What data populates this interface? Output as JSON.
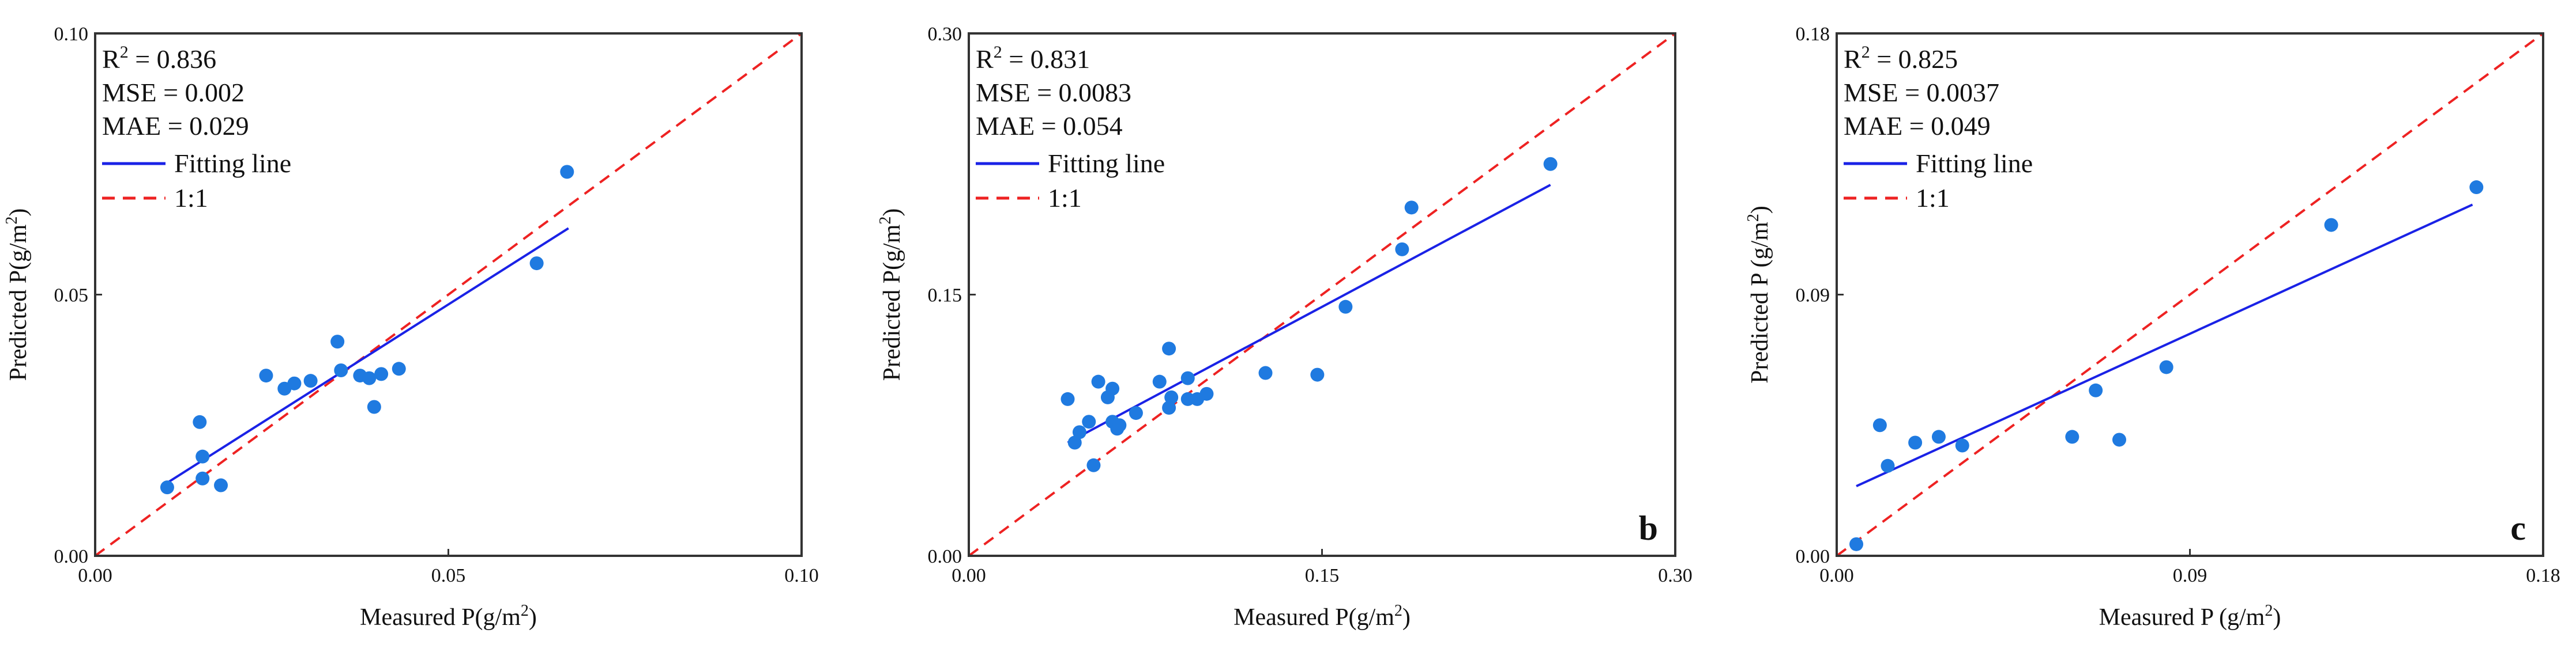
{
  "chart_data": [
    {
      "type": "scatter",
      "panel_letter": "",
      "xlabel": "Measured P(g/m",
      "ylabel": "Predicted P(g/m",
      "label_unit_sup": "2",
      "label_close": ")",
      "xlim": [
        0.0,
        0.1
      ],
      "ylim": [
        0.0,
        0.1
      ],
      "xticks": [
        0.0,
        0.05,
        0.1
      ],
      "yticks": [
        0.0,
        0.05,
        0.1
      ],
      "xtick_labels": [
        "0.00",
        "0.05",
        "0.10"
      ],
      "ytick_labels": [
        "0.00",
        "0.05",
        "0.10"
      ],
      "stats": {
        "r2_prefix": "R",
        "r2_sup": "2",
        "r2_value": " = 0.836",
        "mse": "MSE = 0.002",
        "mae": "MAE = 0.029"
      },
      "legend": {
        "fit": "Fitting line",
        "one_to_one": "1:1"
      },
      "fit_line": {
        "x": [
          0.01,
          0.067
        ],
        "y": [
          0.0138,
          0.0627
        ]
      },
      "points": [
        [
          0.0102,
          0.0131
        ],
        [
          0.0148,
          0.0256
        ],
        [
          0.0152,
          0.019
        ],
        [
          0.0152,
          0.0148
        ],
        [
          0.0178,
          0.0135
        ],
        [
          0.0242,
          0.0345
        ],
        [
          0.0268,
          0.032
        ],
        [
          0.0282,
          0.033
        ],
        [
          0.0305,
          0.0335
        ],
        [
          0.0343,
          0.041
        ],
        [
          0.0348,
          0.0355
        ],
        [
          0.0375,
          0.0345
        ],
        [
          0.0388,
          0.034
        ],
        [
          0.0395,
          0.0285
        ],
        [
          0.0405,
          0.0348
        ],
        [
          0.043,
          0.0358
        ],
        [
          0.0625,
          0.056
        ],
        [
          0.0668,
          0.0735
        ]
      ],
      "colors": {
        "points": "#1f7ae0",
        "fit": "#1a22e6",
        "one_to_one": "#ee2222"
      }
    },
    {
      "type": "scatter",
      "panel_letter": "b",
      "xlabel": "Measured P(g/m",
      "ylabel": "Predicted P(g/m",
      "label_unit_sup": "2",
      "label_close": ")",
      "xlim": [
        0.0,
        0.3
      ],
      "ylim": [
        0.0,
        0.3
      ],
      "xticks": [
        0.0,
        0.15,
        0.3
      ],
      "yticks": [
        0.0,
        0.15,
        0.3
      ],
      "xtick_labels": [
        "0.00",
        "0.15",
        "0.30"
      ],
      "ytick_labels": [
        "0.00",
        "0.15",
        "0.30"
      ],
      "stats": {
        "r2_prefix": "R",
        "r2_sup": "2",
        "r2_value": " = 0.831",
        "mse": "MSE = 0.0083",
        "mae": "MAE = 0.054"
      },
      "legend": {
        "fit": "Fitting line",
        "one_to_one": "1:1"
      },
      "fit_line": {
        "x": [
          0.042,
          0.247
        ],
        "y": [
          0.065,
          0.213
        ]
      },
      "points": [
        [
          0.042,
          0.09
        ],
        [
          0.045,
          0.065
        ],
        [
          0.047,
          0.071
        ],
        [
          0.051,
          0.077
        ],
        [
          0.053,
          0.052
        ],
        [
          0.055,
          0.1
        ],
        [
          0.059,
          0.091
        ],
        [
          0.061,
          0.096
        ],
        [
          0.061,
          0.077
        ],
        [
          0.063,
          0.073
        ],
        [
          0.064,
          0.075
        ],
        [
          0.071,
          0.082
        ],
        [
          0.081,
          0.1
        ],
        [
          0.085,
          0.119
        ],
        [
          0.085,
          0.085
        ],
        [
          0.086,
          0.091
        ],
        [
          0.093,
          0.09
        ],
        [
          0.093,
          0.102
        ],
        [
          0.097,
          0.09
        ],
        [
          0.101,
          0.093
        ],
        [
          0.126,
          0.105
        ],
        [
          0.148,
          0.104
        ],
        [
          0.16,
          0.143
        ],
        [
          0.184,
          0.176
        ],
        [
          0.188,
          0.2
        ],
        [
          0.247,
          0.225
        ]
      ],
      "colors": {
        "points": "#1f7ae0",
        "fit": "#1a22e6",
        "one_to_one": "#ee2222"
      }
    },
    {
      "type": "scatter",
      "panel_letter": "c",
      "xlabel": "Measured P (g/m",
      "ylabel": "Predicted P (g/m",
      "label_unit_sup": "2",
      "label_close": ")",
      "xlim": [
        0.0,
        0.18
      ],
      "ylim": [
        0.0,
        0.18
      ],
      "xticks": [
        0.0,
        0.09,
        0.18
      ],
      "yticks": [
        0.0,
        0.09,
        0.18
      ],
      "xtick_labels": [
        "0.00",
        "0.09",
        "0.18"
      ],
      "ytick_labels": [
        "0.00",
        "0.09",
        "0.18"
      ],
      "stats": {
        "r2_prefix": "R",
        "r2_sup": "2",
        "r2_value": " = 0.825",
        "mse": "MSE = 0.0037",
        "mae": "MAE = 0.049"
      },
      "legend": {
        "fit": "Fitting line",
        "one_to_one": "1:1"
      },
      "fit_line": {
        "x": [
          0.005,
          0.162
        ],
        "y": [
          0.024,
          0.121
        ]
      },
      "points": [
        [
          0.005,
          0.004
        ],
        [
          0.011,
          0.045
        ],
        [
          0.013,
          0.031
        ],
        [
          0.02,
          0.039
        ],
        [
          0.026,
          0.041
        ],
        [
          0.032,
          0.038
        ],
        [
          0.06,
          0.041
        ],
        [
          0.066,
          0.057
        ],
        [
          0.072,
          0.04
        ],
        [
          0.084,
          0.065
        ],
        [
          0.126,
          0.114
        ],
        [
          0.163,
          0.127
        ]
      ],
      "colors": {
        "points": "#1f7ae0",
        "fit": "#1a22e6",
        "one_to_one": "#ee2222"
      }
    }
  ]
}
